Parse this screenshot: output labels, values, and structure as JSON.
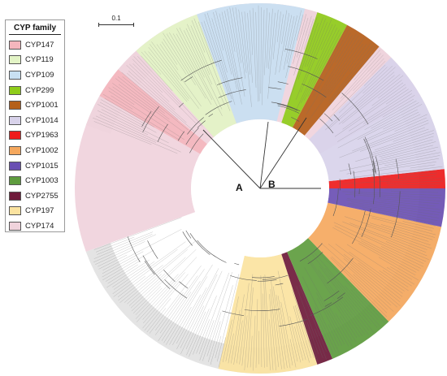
{
  "legend": {
    "title": "CYP family",
    "items": [
      {
        "label": "CYP147",
        "color": "#f4b6bd"
      },
      {
        "label": "CYP119",
        "color": "#e3f4c6"
      },
      {
        "label": "CYP109",
        "color": "#c8e0f2"
      },
      {
        "label": "CYP299",
        "color": "#8fcc1a"
      },
      {
        "label": "CYP1001",
        "color": "#b5601a"
      },
      {
        "label": "CYP1014",
        "color": "#d8d2ea"
      },
      {
        "label": "CYP1963",
        "color": "#ee1c1c"
      },
      {
        "label": "CYP1002",
        "color": "#f5a85e"
      },
      {
        "label": "CYP1015",
        "color": "#6a4fb3"
      },
      {
        "label": "CYP1003",
        "color": "#5e9c3e"
      },
      {
        "label": "CYP2755",
        "color": "#6e1a3a"
      },
      {
        "label": "CYP197",
        "color": "#fbe3a0"
      },
      {
        "label": "CYP174",
        "color": "#f0d3dc"
      }
    ]
  },
  "scale_bar": {
    "label": "0.1"
  },
  "clades": {
    "a": "A",
    "b": "B"
  }
}
